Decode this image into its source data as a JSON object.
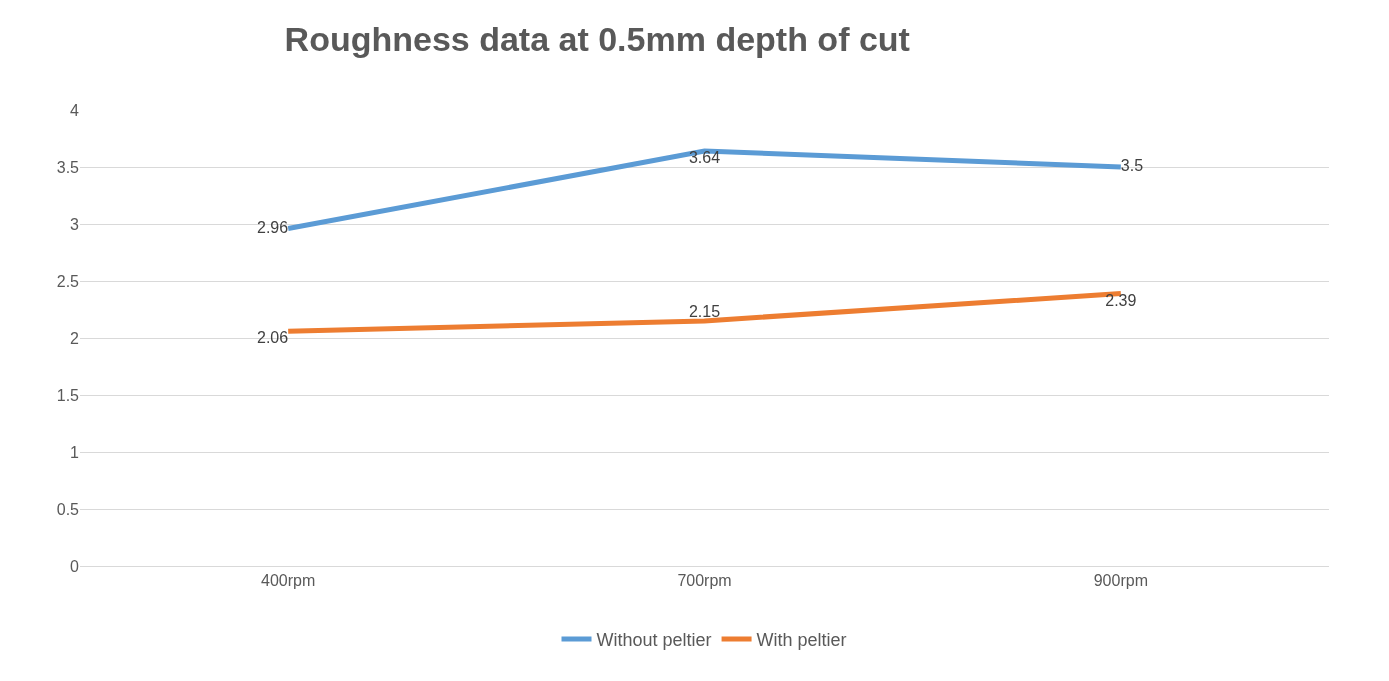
{
  "chart_data": {
    "type": "line",
    "title": "Roughness data at 0.5mm depth of cut",
    "categories": [
      "400rpm",
      "700rpm",
      "900rpm"
    ],
    "series": [
      {
        "name": "Without peltier",
        "color": "#5b9bd5",
        "values": [
          2.96,
          3.64,
          3.5
        ]
      },
      {
        "name": "With peltier",
        "color": "#ed7d31",
        "values": [
          2.06,
          2.15,
          2.39
        ]
      }
    ],
    "ylim": [
      0,
      4
    ],
    "yticks": [
      0,
      0.5,
      1,
      1.5,
      2,
      2.5,
      3,
      3.5,
      4
    ],
    "grid": "y",
    "legend": "bottom",
    "marker": "none",
    "line_style": "solid",
    "data_labels": true
  }
}
